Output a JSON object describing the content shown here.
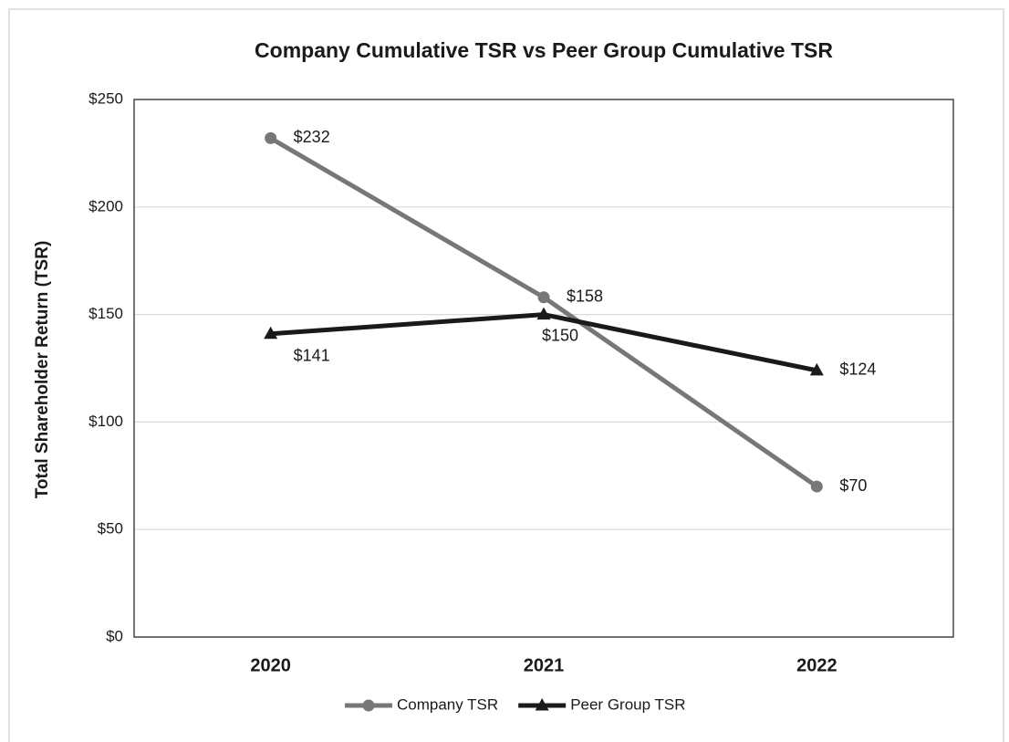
{
  "chart_data": {
    "type": "line",
    "title": "Company Cumulative TSR vs Peer Group Cumulative TSR",
    "y_label": "Total Shareholder Return (TSR)",
    "categories": [
      "2020",
      "2021",
      "2022"
    ],
    "series": [
      {
        "name": "Company TSR",
        "color": "#777777",
        "marker": "circle",
        "values": [
          232,
          158,
          70
        ],
        "value_labels": [
          "$232",
          "$158",
          "$70"
        ]
      },
      {
        "name": "Peer Group TSR",
        "color": "#1a1a1a",
        "marker": "triangle",
        "values": [
          141,
          150,
          124
        ],
        "value_labels": [
          "$141",
          "$150",
          "$124"
        ]
      }
    ],
    "ylim": [
      0,
      250
    ],
    "yticks": [
      {
        "value": 0,
        "label": "$0"
      },
      {
        "value": 50,
        "label": "$50"
      },
      {
        "value": 100,
        "label": "$100"
      },
      {
        "value": 150,
        "label": "$150"
      },
      {
        "value": 200,
        "label": "$200"
      },
      {
        "value": 250,
        "label": "$250"
      }
    ],
    "grid": true,
    "legend": "bottom"
  }
}
